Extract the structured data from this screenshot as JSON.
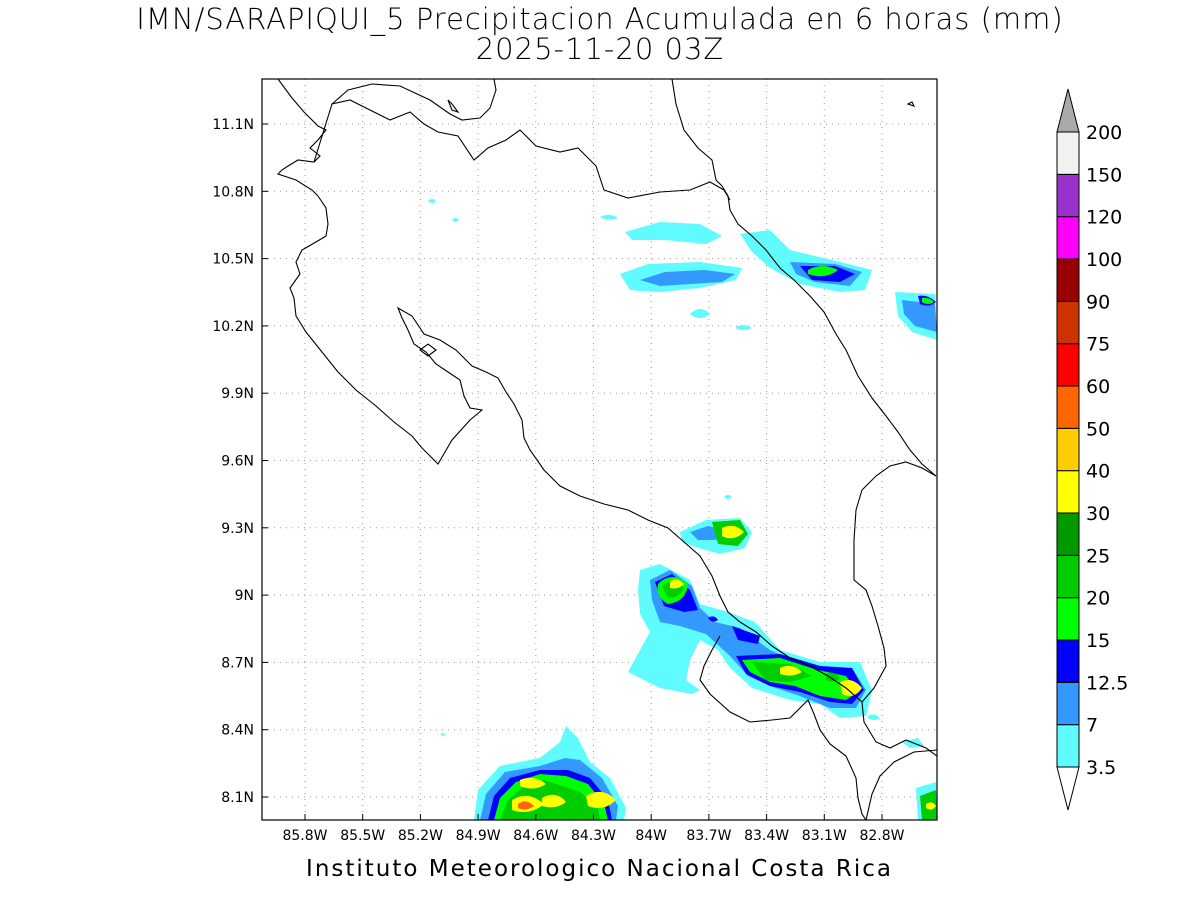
{
  "header": {
    "title_line1": "IMN/SARAPIQUI_5 Precipitacion Acumulada en 6 horas (mm)",
    "title_line2": "2025-11-20 03Z"
  },
  "footer": {
    "credit": "Instituto Meteorologico Nacional Costa Rica"
  },
  "map": {
    "lat_ticks": [
      "11.1N",
      "10.8N",
      "10.5N",
      "10.2N",
      "9.9N",
      "9.6N",
      "9.3N",
      "9N",
      "8.7N",
      "8.4N",
      "8.1N"
    ],
    "lon_ticks": [
      "85.8W",
      "85.5W",
      "85.2W",
      "84.9W",
      "84.6W",
      "84.3W",
      "84W",
      "83.7W",
      "83.4W",
      "83.1W",
      "82.8W"
    ],
    "grid": true,
    "gridline_style": "dotted"
  },
  "colorbar": {
    "labels": [
      "200",
      "150",
      "120",
      "100",
      "90",
      "75",
      "60",
      "50",
      "40",
      "30",
      "25",
      "20",
      "15",
      "12.5",
      "7",
      "3.5"
    ],
    "colors": [
      "#ffffff",
      "#5ffbff",
      "#3399ff",
      "#0000ff",
      "#00ff00",
      "#00cc00",
      "#009900",
      "#ffff00",
      "#ffcc00",
      "#ff6600",
      "#ff0000",
      "#cc3300",
      "#990000",
      "#ff00ff",
      "#9933cc",
      "#f2f2f2",
      "#aaaaaa"
    ],
    "bins": [
      "<3.5",
      "3.5-7",
      "7-12.5",
      "12.5-15",
      "15-20",
      "20-25",
      "25-30",
      "30-40",
      "40-50",
      "50-60",
      "60-75",
      "75-90",
      "90-100",
      "100-120",
      "120-150",
      "150-200",
      ">200"
    ]
  }
}
